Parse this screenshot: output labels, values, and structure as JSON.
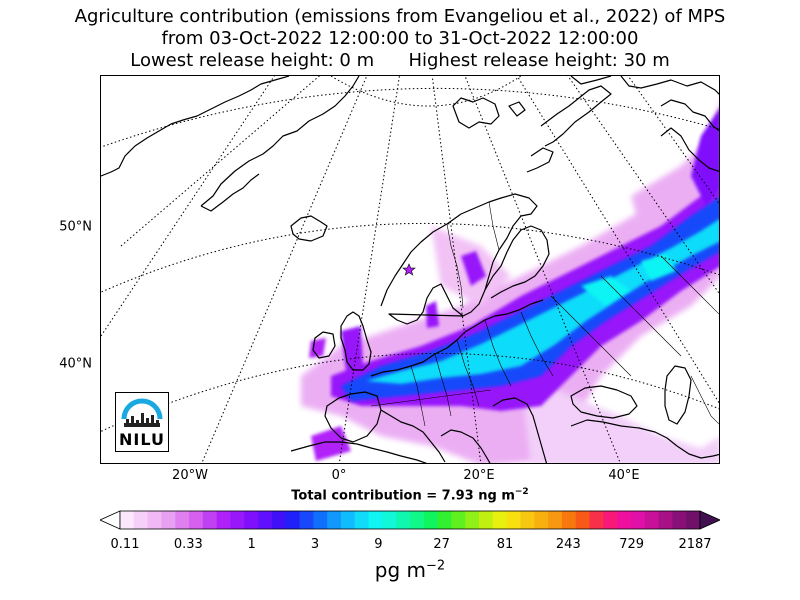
{
  "title": {
    "line1": "Agriculture contribution (emissions from Evangeliou et al., 2022) of MPS",
    "line2": "from 03-Oct-2022 12:00:00 to 31-Oct-2022 12:00:00",
    "line3": "Lowest release height: 0 m      Highest release height: 30 m"
  },
  "map": {
    "lat_labels": [
      "50°N",
      "40°N"
    ],
    "lon_labels": [
      "20°W",
      "0°",
      "20°E",
      "40°E"
    ],
    "receptor_marker": "star-icon",
    "logo_text": "NILU",
    "logo_accent_color": "#19a8e0"
  },
  "total": {
    "prefix": "Total contribution = 7.93 ng m",
    "exponent": "−2"
  },
  "colorbar": {
    "tick_labels": [
      "0.11",
      "0.33",
      "1",
      "3",
      "9",
      "27",
      "81",
      "243",
      "729",
      "2187"
    ],
    "units_base": "pg m",
    "units_exponent": "−2",
    "colors": [
      "#fce8fc",
      "#f6d0f8",
      "#f0b8f4",
      "#e8a0f2",
      "#e080f0",
      "#d860f0",
      "#c040f4",
      "#b020f8",
      "#9818fa",
      "#8010fc",
      "#6010fc",
      "#4010f8",
      "#2020f8",
      "#1848fa",
      "#1070fc",
      "#1098fc",
      "#10bcfc",
      "#10dcfa",
      "#10f4f4",
      "#10f8d8",
      "#10f8b0",
      "#10f888",
      "#10f460",
      "#30f030",
      "#60f020",
      "#90f018",
      "#c0f010",
      "#e8f010",
      "#f8e010",
      "#f8c810",
      "#f8b010",
      "#f89810",
      "#f87810",
      "#f85818",
      "#f83048",
      "#f81878",
      "#f010a0",
      "#e010a8",
      "#c81098",
      "#a81088",
      "#881078",
      "#701068"
    ],
    "over_color": "#401050",
    "under_color": "#ffffff"
  }
}
